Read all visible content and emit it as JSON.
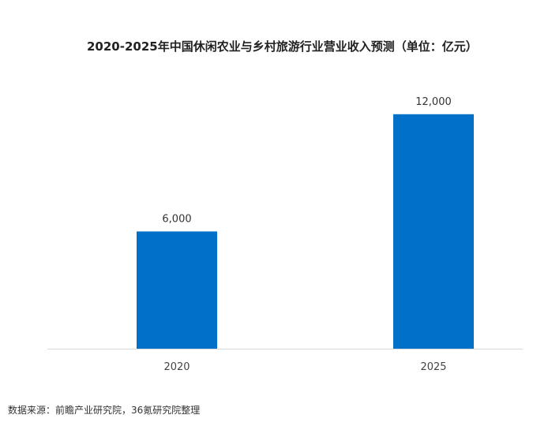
{
  "chart_data": {
    "type": "bar",
    "title": "2020-2025年中国休闲农业与乡村旅游行业营业收入预测（单位：亿元）",
    "categories": [
      "2020",
      "2025"
    ],
    "values": [
      6000,
      12000
    ],
    "data_labels": [
      "6,000",
      "12,000"
    ],
    "xlabel": "",
    "ylabel": "",
    "ylim": [
      0,
      13000
    ],
    "grid": false,
    "legend": "none",
    "bar_color": "#0070c9",
    "axis_color": "#d9d9d9"
  },
  "source_note": "数据来源：前瞻产业研究院，36氪研究院整理"
}
